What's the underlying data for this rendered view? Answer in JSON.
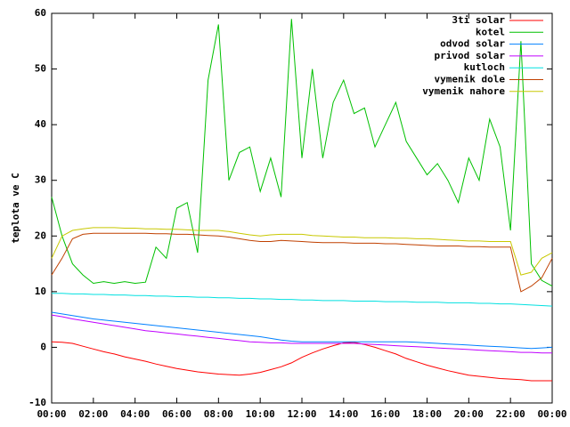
{
  "chart_data": {
    "type": "line",
    "ylabel": "teplota ve C",
    "x": [
      0,
      0.5,
      1,
      1.5,
      2,
      2.5,
      3,
      3.5,
      4,
      4.5,
      5,
      5.5,
      6,
      6.5,
      7,
      7.5,
      8,
      8.5,
      9,
      9.5,
      10,
      10.5,
      11,
      11.5,
      12,
      12.5,
      13,
      13.5,
      14,
      14.5,
      15,
      15.5,
      16,
      16.5,
      17,
      17.5,
      18,
      18.5,
      19,
      19.5,
      20,
      20.5,
      21,
      21.5,
      22,
      22.5,
      23,
      23.5,
      24
    ],
    "xlim": [
      0,
      24
    ],
    "xticks": [
      {
        "value": 0,
        "label": "00:00"
      },
      {
        "value": 2,
        "label": "02:00"
      },
      {
        "value": 4,
        "label": "04:00"
      },
      {
        "value": 6,
        "label": "06:00"
      },
      {
        "value": 8,
        "label": "08:00"
      },
      {
        "value": 10,
        "label": "10:00"
      },
      {
        "value": 12,
        "label": "12:00"
      },
      {
        "value": 14,
        "label": "14:00"
      },
      {
        "value": 16,
        "label": "16:00"
      },
      {
        "value": 18,
        "label": "18:00"
      },
      {
        "value": 20,
        "label": "20:00"
      },
      {
        "value": 22,
        "label": "22:00"
      },
      {
        "value": 24,
        "label": "00:00"
      }
    ],
    "ylim": [
      -10,
      60
    ],
    "yticks": [
      -10,
      0,
      10,
      20,
      30,
      40,
      50,
      60
    ],
    "legend": "upper right",
    "series": [
      {
        "name": "3ti solar",
        "color": "#ff0000",
        "values": [
          1,
          0.9,
          0.7,
          0.2,
          -0.3,
          -0.8,
          -1.2,
          -1.7,
          -2.1,
          -2.5,
          -3,
          -3.4,
          -3.8,
          -4.1,
          -4.4,
          -4.6,
          -4.8,
          -4.9,
          -5,
          -4.8,
          -4.5,
          -4,
          -3.5,
          -2.8,
          -1.8,
          -1,
          -0.3,
          0.3,
          0.8,
          0.9,
          0.5,
          0,
          -0.6,
          -1.2,
          -2,
          -2.6,
          -3.2,
          -3.7,
          -4.2,
          -4.6,
          -5,
          -5.2,
          -5.4,
          -5.6,
          -5.7,
          -5.8,
          -6,
          -6,
          -6
        ]
      },
      {
        "name": "kotel",
        "color": "#00c000",
        "values": [
          27,
          20,
          15,
          13,
          11.5,
          11.8,
          11.5,
          11.8,
          11.5,
          11.7,
          18,
          16,
          25,
          26,
          17,
          48,
          58,
          30,
          35,
          36,
          28,
          34,
          27,
          59,
          34,
          50,
          34,
          44,
          48,
          42,
          43,
          36,
          40,
          44,
          37,
          34,
          31,
          33,
          30,
          26,
          34,
          30,
          41,
          36,
          21,
          55,
          15,
          12,
          11
        ]
      },
      {
        "name": "odvod solar",
        "color": "#0080ff",
        "values": [
          6.3,
          6,
          5.7,
          5.4,
          5.1,
          4.9,
          4.7,
          4.5,
          4.3,
          4.1,
          3.9,
          3.7,
          3.5,
          3.3,
          3.1,
          2.9,
          2.7,
          2.5,
          2.3,
          2.1,
          1.9,
          1.6,
          1.3,
          1.1,
          1,
          1,
          1,
          1,
          1,
          1,
          1,
          1,
          1,
          1,
          1,
          0.9,
          0.8,
          0.7,
          0.6,
          0.5,
          0.4,
          0.3,
          0.2,
          0.1,
          0,
          -0.1,
          -0.2,
          -0.1,
          0
        ]
      },
      {
        "name": "privod solar",
        "color": "#c000ff",
        "values": [
          5.8,
          5.5,
          5.1,
          4.8,
          4.5,
          4.2,
          3.9,
          3.6,
          3.3,
          3,
          2.8,
          2.6,
          2.4,
          2.2,
          2,
          1.8,
          1.6,
          1.4,
          1.2,
          1,
          0.9,
          0.8,
          0.8,
          0.7,
          0.7,
          0.7,
          0.7,
          0.7,
          0.7,
          0.7,
          0.6,
          0.5,
          0.4,
          0.3,
          0.2,
          0.1,
          0,
          -0.1,
          -0.2,
          -0.3,
          -0.4,
          -0.5,
          -0.6,
          -0.7,
          -0.8,
          -0.9,
          -0.9,
          -1,
          -1
        ]
      },
      {
        "name": "kutloch",
        "color": "#00e0e0",
        "values": [
          9.7,
          9.7,
          9.6,
          9.6,
          9.5,
          9.5,
          9.4,
          9.4,
          9.3,
          9.3,
          9.2,
          9.2,
          9.1,
          9.1,
          9,
          9,
          8.9,
          8.9,
          8.8,
          8.8,
          8.7,
          8.7,
          8.6,
          8.6,
          8.5,
          8.5,
          8.4,
          8.4,
          8.4,
          8.3,
          8.3,
          8.3,
          8.2,
          8.2,
          8.2,
          8.1,
          8.1,
          8.1,
          8,
          8,
          8,
          7.9,
          7.9,
          7.8,
          7.8,
          7.7,
          7.6,
          7.5,
          7.4
        ]
      },
      {
        "name": "vymenik dole",
        "color": "#c04000",
        "values": [
          13,
          16,
          19.5,
          20.3,
          20.5,
          20.5,
          20.5,
          20.5,
          20.5,
          20.5,
          20.4,
          20.4,
          20.3,
          20.3,
          20.2,
          20.1,
          20,
          19.8,
          19.5,
          19.2,
          19,
          19,
          19.2,
          19.1,
          19,
          18.9,
          18.8,
          18.8,
          18.8,
          18.7,
          18.7,
          18.7,
          18.6,
          18.6,
          18.5,
          18.4,
          18.3,
          18.2,
          18.2,
          18.2,
          18.1,
          18.1,
          18,
          18,
          18,
          10,
          11,
          12.5,
          16
        ]
      },
      {
        "name": "vymenik nahore",
        "color": "#c8c800",
        "values": [
          16,
          20,
          21,
          21.3,
          21.5,
          21.5,
          21.5,
          21.4,
          21.4,
          21.3,
          21.3,
          21.2,
          21.2,
          21.1,
          21,
          21,
          21,
          20.8,
          20.5,
          20.2,
          20,
          20.2,
          20.3,
          20.3,
          20.3,
          20.1,
          20,
          19.9,
          19.8,
          19.8,
          19.7,
          19.7,
          19.7,
          19.6,
          19.6,
          19.5,
          19.5,
          19.4,
          19.3,
          19.2,
          19.1,
          19.1,
          19,
          19,
          19,
          13,
          13.5,
          16,
          17
        ]
      }
    ]
  }
}
